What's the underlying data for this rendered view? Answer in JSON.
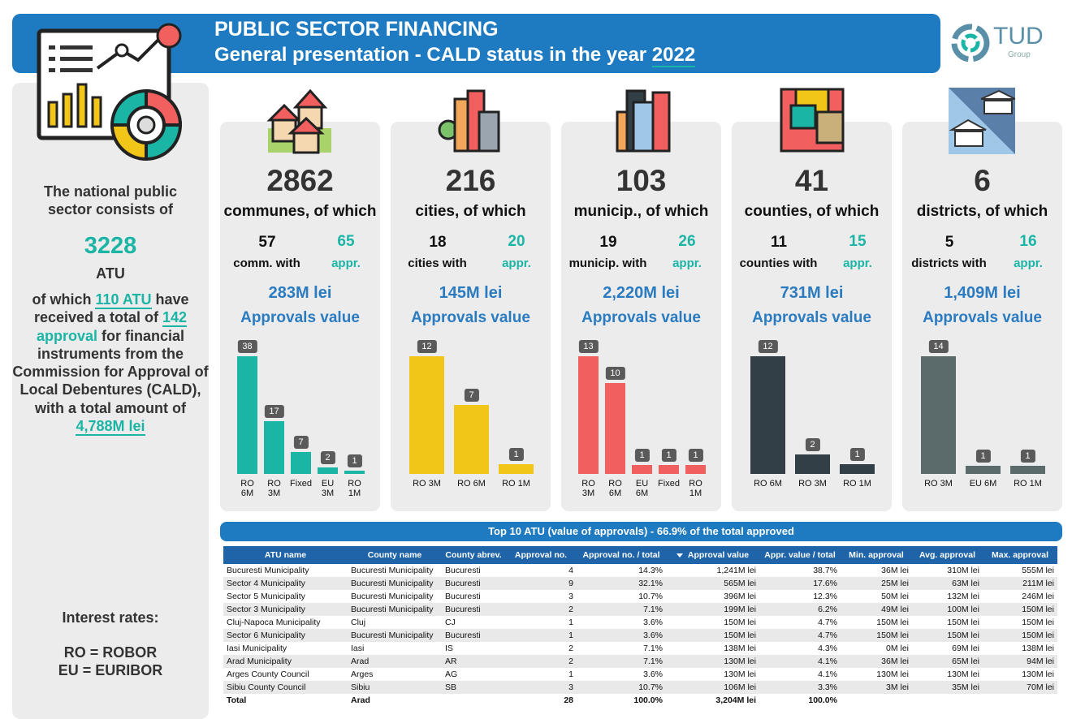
{
  "header": {
    "title": "PUBLIC SECTOR FINANCING",
    "subtitle": "General presentation - CALD status in the year",
    "year": "2022"
  },
  "logo": {
    "name": "TUD",
    "tagline": "Group"
  },
  "sidebar": {
    "intro": "The national public sector consists of",
    "total_atu": 3228,
    "atu_label": "ATU",
    "summary_intro": "of which",
    "atu_count": "110 ATU",
    "summary_mid": "have received a total of",
    "approval_count": "142",
    "approval_word": "approval",
    "summary_rest": "for financial instruments from the Commission for Approval of Local Debentures (CALD), with a total amount of",
    "total_amount": "4,788M lei",
    "rates_title": "Interest rates:",
    "rate_ro": "RO = ROBOR",
    "rate_eu": "EU = EURIBOR"
  },
  "cards": [
    {
      "count": 2862,
      "label": "communes, of which",
      "with_count": 57,
      "with_label": "comm. with",
      "appr_count": 65,
      "appr_label": "appr.",
      "amount": "283M lei",
      "amount_label": "Approvals value"
    },
    {
      "count": 216,
      "label": "cities, of which",
      "with_count": 18,
      "with_label": "cities with",
      "appr_count": 20,
      "appr_label": "appr.",
      "amount": "145M lei",
      "amount_label": "Approvals value"
    },
    {
      "count": 103,
      "label": "municip., of which",
      "with_count": 19,
      "with_label": "municip. with",
      "appr_count": 26,
      "appr_label": "appr.",
      "amount": "2,220M lei",
      "amount_label": "Approvals value"
    },
    {
      "count": 41,
      "label": "counties, of which",
      "with_count": 11,
      "with_label": "counties with",
      "appr_count": 15,
      "appr_label": "appr.",
      "amount": "731M lei",
      "amount_label": "Approvals value"
    },
    {
      "count": 6,
      "label": "districts, of which",
      "with_count": 5,
      "with_label": "districts with",
      "appr_count": 16,
      "appr_label": "appr.",
      "amount": "1,409M lei",
      "amount_label": "Approvals value"
    }
  ],
  "chart_data": [
    {
      "type": "bar",
      "categories": [
        "RO 6M",
        "RO 3M",
        "Fixed",
        "EU 3M",
        "RO 1M"
      ],
      "values": [
        38,
        17,
        7,
        2,
        1
      ],
      "color": "#1bb5a6"
    },
    {
      "type": "bar",
      "categories": [
        "RO 3M",
        "RO 6M",
        "RO 1M"
      ],
      "values": [
        12,
        7,
        1
      ],
      "color": "#f2c618"
    },
    {
      "type": "bar",
      "categories": [
        "RO 3M",
        "RO 6M",
        "EU 6M",
        "Fixed",
        "RO 1M"
      ],
      "values": [
        13,
        10,
        1,
        1,
        1
      ],
      "color": "#f1605e"
    },
    {
      "type": "bar",
      "categories": [
        "RO 6M",
        "RO 3M",
        "RO 1M"
      ],
      "values": [
        12,
        2,
        1
      ],
      "color": "#333f47"
    },
    {
      "type": "bar",
      "categories": [
        "RO 3M",
        "EU 6M",
        "RO 1M"
      ],
      "values": [
        14,
        1,
        1
      ],
      "color": "#5b6a6b"
    }
  ],
  "table": {
    "title": "Top 10 ATU (value of approvals) - 66.9% of the total approved",
    "columns": [
      "ATU name",
      "County name",
      "County abrev.",
      "Approval no.",
      "Approval no. / total",
      "Approval value",
      "Appr. value / total",
      "Min. approval",
      "Avg. approval",
      "Max. approval"
    ],
    "rows": [
      [
        "Bucuresti Municipality",
        "Bucuresti Municipality",
        "Bucuresti",
        4,
        "14.3%",
        "1,241M lei",
        "38.7%",
        "36M lei",
        "310M lei",
        "555M lei"
      ],
      [
        "Sector 4 Municipality",
        "Bucuresti Municipality",
        "Bucuresti",
        9,
        "32.1%",
        "565M lei",
        "17.6%",
        "25M lei",
        "63M lei",
        "211M lei"
      ],
      [
        "Sector 5 Municipality",
        "Bucuresti Municipality",
        "Bucuresti",
        3,
        "10.7%",
        "396M lei",
        "12.3%",
        "50M lei",
        "132M lei",
        "246M lei"
      ],
      [
        "Sector 3 Municipality",
        "Bucuresti Municipality",
        "Bucuresti",
        2,
        "7.1%",
        "199M lei",
        "6.2%",
        "49M lei",
        "100M lei",
        "150M lei"
      ],
      [
        "Cluj-Napoca Municipality",
        "Cluj",
        "CJ",
        1,
        "3.6%",
        "150M lei",
        "4.7%",
        "150M lei",
        "150M lei",
        "150M lei"
      ],
      [
        "Sector 6 Municipality",
        "Bucuresti Municipality",
        "Bucuresti",
        1,
        "3.6%",
        "150M lei",
        "4.7%",
        "150M lei",
        "150M lei",
        "150M lei"
      ],
      [
        "Iasi Municipality",
        "Iasi",
        "IS",
        2,
        "7.1%",
        "138M lei",
        "4.3%",
        "0M lei",
        "69M lei",
        "138M lei"
      ],
      [
        "Arad Municipality",
        "Arad",
        "AR",
        2,
        "7.1%",
        "130M lei",
        "4.1%",
        "36M lei",
        "65M lei",
        "94M lei"
      ],
      [
        "Arges County Council",
        "Arges",
        "AG",
        1,
        "3.6%",
        "130M lei",
        "4.1%",
        "130M lei",
        "130M lei",
        "130M lei"
      ],
      [
        "Sibiu County Council",
        "Sibiu",
        "SB",
        3,
        "10.7%",
        "106M lei",
        "3.3%",
        "3M lei",
        "35M lei",
        "70M lei"
      ]
    ],
    "total": [
      "Total",
      "Arad",
      null,
      28,
      "100.0%",
      "3,204M lei",
      "100.0%",
      null,
      null,
      null
    ]
  }
}
